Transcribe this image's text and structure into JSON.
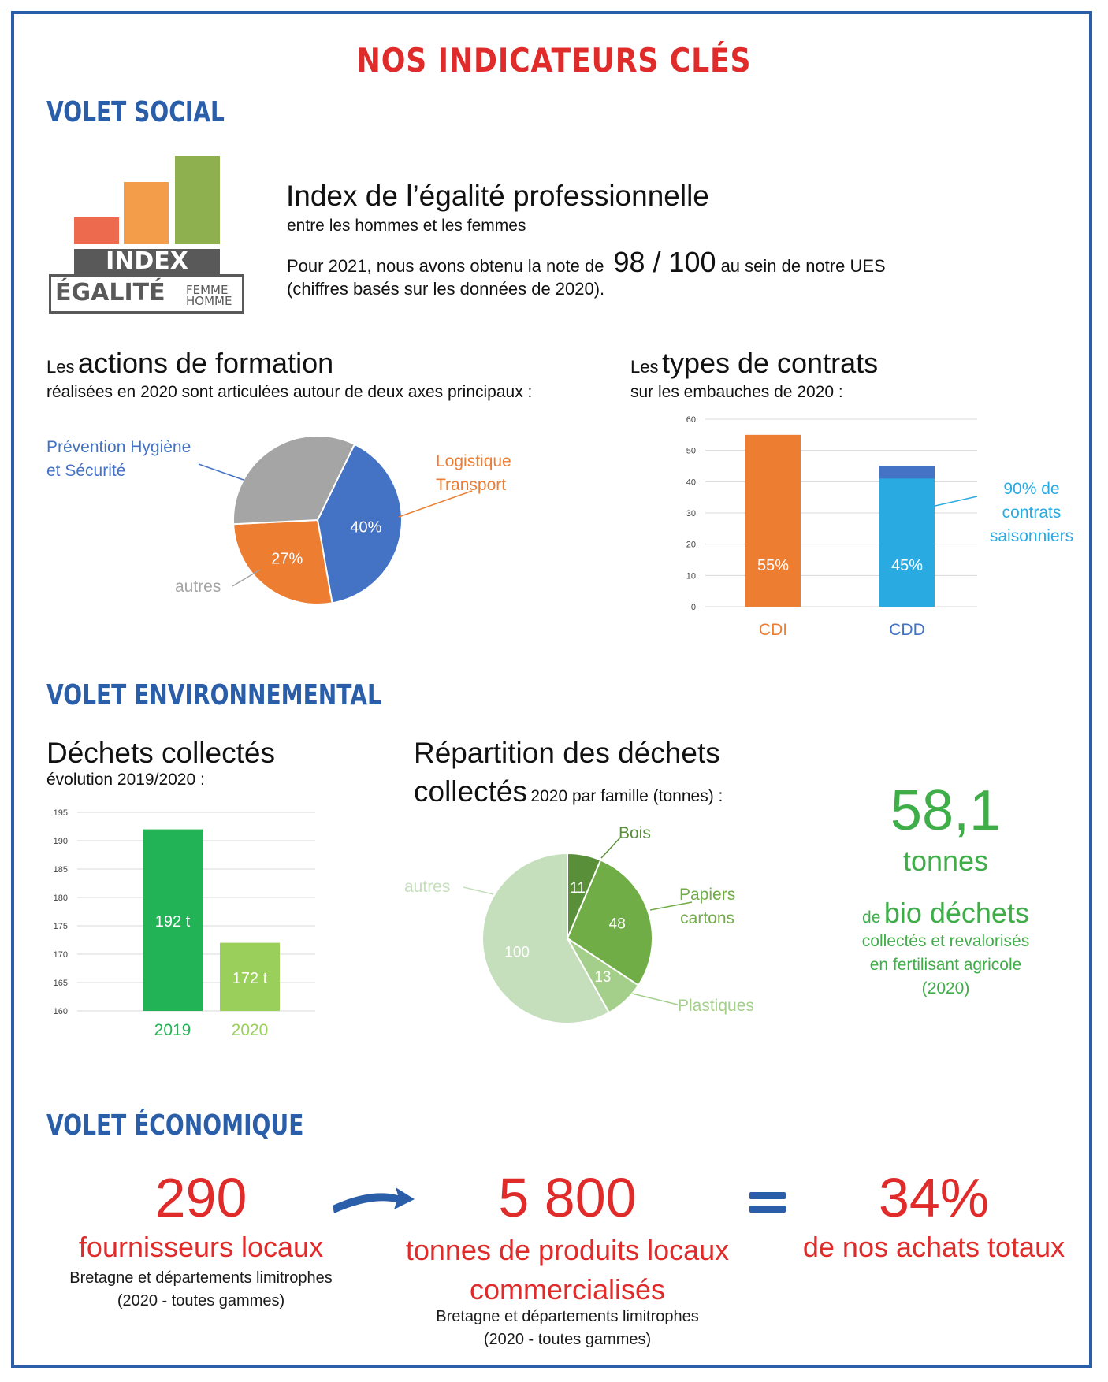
{
  "title": "NOS INDICATEURS CLÉS",
  "social": {
    "heading": "VOLET SOCIAL",
    "logo": {
      "word1": "INDEX",
      "word2": "ÉGALITÉ",
      "small1": "FEMME",
      "small2": "HOMME"
    },
    "index_title": "Index de l’égalité professionnelle",
    "index_subtitle": "entre les hommes et les femmes",
    "note_prefix": "Pour 2021, nous avons obtenu la note de",
    "note_value": "98 / 100",
    "note_suffix": "au sein de notre UES",
    "note_detail": "(chiffres basés sur les données de 2020).",
    "formation_prefix": "Les",
    "formation_title": "actions de formation",
    "formation_subtitle": "réalisées en 2020 sont articulées autour de deux axes principaux :",
    "contrats_prefix": "Les",
    "contrats_title": "types de contrats",
    "contrats_subtitle": "sur les embauches de 2020 :",
    "pie_labels": {
      "prevention_line1": "Prévention Hygiène",
      "prevention_line2": "et Sécurité",
      "logistique_line1": "Logistique",
      "logistique_line2": "Transport",
      "autres": "autres"
    },
    "contrats_annotation_line1": "90% de",
    "contrats_annotation_line2": "contrats",
    "contrats_annotation_line3": "saisonniers"
  },
  "environment": {
    "heading": "VOLET ENVIRONNEMENTAL",
    "dechets_title": "Déchets collectés",
    "dechets_subtitle": "évolution 2019/2020 :",
    "repartition_line1": "Répartition des déchets",
    "repartition_line2": "collectés",
    "repartition_suffix": "2020 par famille (tonnes) :",
    "bio_value": "58,1",
    "bio_unit": "tonnes",
    "bio_prefix": "de",
    "bio_title": "bio déchets",
    "bio_line1": "collectés et revalorisés",
    "bio_line2": "en fertilisant agricole",
    "bio_line3": "(2020)"
  },
  "economy": {
    "heading": "VOLET ÉCONOMIQUE",
    "suppliers_value": "290",
    "suppliers_label": "fournisseurs locaux",
    "suppliers_sub1": "Bretagne et départements limitrophes",
    "suppliers_sub2": "(2020 - toutes gammes)",
    "tonnes_value": "5 800",
    "tonnes_label1": "tonnes de produits locaux",
    "tonnes_label2": "commercialisés",
    "tonnes_sub1": "Bretagne et départements limitrophes",
    "tonnes_sub2": "(2020 - toutes gammes)",
    "share_value": "34%",
    "share_label": "de nos achats totaux"
  },
  "chart_data": [
    {
      "type": "pie",
      "labels": [
        "Prévention Hygiène et Sécurité",
        "Logistique Transport",
        "autres"
      ],
      "values": [
        40,
        27,
        33
      ],
      "value_labels": [
        "40%",
        "27%",
        ""
      ],
      "colors": [
        "#4472c4",
        "#ed7d31",
        "#a5a5a5"
      ]
    },
    {
      "type": "bar",
      "categories": [
        "CDI",
        "CDD"
      ],
      "values": [
        55,
        45
      ],
      "value_labels": [
        "55%",
        "45%"
      ],
      "saisonniers_part": 41,
      "ylim": [
        0,
        60
      ],
      "yticks": [
        "0",
        "10",
        "20",
        "30",
        "40",
        "50",
        "60"
      ],
      "colors": [
        "#ed7d31",
        "#29abe2"
      ],
      "stack_top_color": "#4472c4",
      "label_colors": [
        "#ed7d31",
        "#4472c4"
      ]
    },
    {
      "type": "bar",
      "categories": [
        "2019",
        "2020"
      ],
      "values": [
        192,
        172
      ],
      "value_labels": [
        "192 t",
        "172 t"
      ],
      "ylim": [
        160,
        195
      ],
      "yticks": [
        "160",
        "165",
        "170",
        "175",
        "180",
        "185",
        "190",
        "195"
      ],
      "colors": [
        "#22b356",
        "#9bcf5b"
      ]
    },
    {
      "type": "pie",
      "labels": [
        "Bois",
        "Papiers cartons",
        "Plastiques",
        "autres"
      ],
      "label_lines": [
        [
          "Bois"
        ],
        [
          "Papiers",
          "cartons"
        ],
        [
          "Plastiques"
        ],
        [
          "autres"
        ]
      ],
      "values": [
        11,
        48,
        13,
        100
      ],
      "value_labels": [
        "11",
        "48",
        "13",
        "100"
      ],
      "colors": [
        "#5a8f3a",
        "#70ad47",
        "#a3cf8a",
        "#c5dfbd"
      ]
    }
  ]
}
